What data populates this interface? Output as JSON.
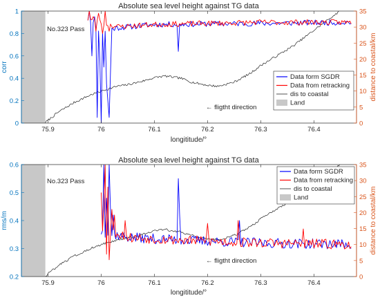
{
  "colors": {
    "sgdr": "#0000FF",
    "retracking": "#FF0000",
    "coastal": "#262626",
    "land": "#C8C8C8",
    "left_axis": "#0072BD",
    "right_axis": "#D95319"
  },
  "chart_data": [
    {
      "type": "line",
      "title": "Absolute sea level height against TG data",
      "xlabel": "longititude/°",
      "ylabel": "corr",
      "y2label": "distance to coastal/km",
      "xlim": [
        75.85,
        76.48
      ],
      "ylim": [
        0,
        1
      ],
      "y2lim": [
        0,
        35
      ],
      "x_ticks": [
        "75.9",
        "76",
        "76.1",
        "76.2",
        "76.3",
        "76.4"
      ],
      "y_ticks": [
        "0",
        "0.2",
        "0.4",
        "0.6",
        "0.8",
        "1"
      ],
      "y2_ticks": [
        "0",
        "5",
        "10",
        "15",
        "20",
        "25",
        "30",
        "35"
      ],
      "land_range": [
        75.85,
        75.895
      ],
      "annotations": [
        "No.323 Pass",
        "← fligtht direction"
      ],
      "legend_position": "lower-right",
      "legend": [
        "Data form SGDR",
        "Data from retracking",
        "dis to coastal",
        "Land"
      ],
      "grid": false,
      "series": [
        {
          "name": "Data form SGDR",
          "axis": "left",
          "color_key": "sgdr",
          "x_start": 75.975,
          "x_end": 76.47,
          "step": 0.0025,
          "seed": 11,
          "baseline": [
            [
              75.975,
              0.93
            ],
            [
              76.0,
              0.82
            ],
            [
              76.03,
              0.85
            ],
            [
              76.1,
              0.88
            ],
            [
              76.3,
              0.89
            ],
            [
              76.47,
              0.9
            ]
          ],
          "noise": 0.025,
          "spikes": [
            [
              75.977,
              1.0
            ],
            [
              75.983,
              0.6
            ],
            [
              75.988,
              0.95
            ],
            [
              75.993,
              0.05
            ],
            [
              75.998,
              0.55
            ],
            [
              76.001,
              0.0
            ],
            [
              76.005,
              0.5
            ],
            [
              76.009,
              0.35
            ],
            [
              76.012,
              0.2
            ],
            [
              76.015,
              0.05
            ],
            [
              76.018,
              0.45
            ],
            [
              76.146,
              0.64
            ]
          ]
        },
        {
          "name": "Data from retracking",
          "axis": "left",
          "color_key": "retracking",
          "x_start": 75.975,
          "x_end": 76.47,
          "step": 0.0025,
          "seed": 23,
          "baseline": [
            [
              75.975,
              0.93
            ],
            [
              76.03,
              0.86
            ],
            [
              76.1,
              0.88
            ],
            [
              76.3,
              0.9
            ],
            [
              76.47,
              0.9
            ]
          ],
          "noise": 0.025,
          "spikes": [
            [
              75.978,
              1.0
            ],
            [
              75.985,
              0.95
            ],
            [
              75.99,
              0.82
            ],
            [
              75.996,
              0.98
            ],
            [
              76.003,
              0.8
            ],
            [
              76.008,
              1.0
            ],
            [
              76.016,
              0.82
            ]
          ]
        },
        {
          "name": "dis to coastal",
          "axis": "right",
          "color_key": "coastal",
          "points": [
            [
              75.895,
              0.2
            ],
            [
              75.92,
              3.5
            ],
            [
              75.95,
              6.5
            ],
            [
              75.98,
              8.8
            ],
            [
              76.0,
              10.0
            ],
            [
              76.03,
              11.5
            ],
            [
              76.05,
              12.0
            ],
            [
              76.08,
              13.2
            ],
            [
              76.1,
              14.2
            ],
            [
              76.12,
              14.7
            ],
            [
              76.15,
              14.0
            ],
            [
              76.17,
              12.8
            ],
            [
              76.2,
              11.8
            ],
            [
              76.22,
              11.5
            ],
            [
              76.25,
              12.8
            ],
            [
              76.28,
              15.5
            ],
            [
              76.3,
              18.0
            ],
            [
              76.33,
              21.0
            ],
            [
              76.36,
              24.0
            ],
            [
              76.38,
              26.5
            ],
            [
              76.4,
              29.0
            ],
            [
              76.42,
              31.5
            ],
            [
              76.44,
              34.0
            ],
            [
              76.45,
              35.0
            ]
          ],
          "jitter": 0.35
        }
      ]
    },
    {
      "type": "line",
      "title": "Absolute sea level height against TG data",
      "xlabel": "longititude/°",
      "ylabel": "rms/m",
      "y2label": "distance to coastal/km",
      "xlim": [
        75.85,
        76.48
      ],
      "ylim": [
        0.2,
        0.6
      ],
      "y2lim": [
        0,
        35
      ],
      "x_ticks": [
        "75.9",
        "76",
        "76.1",
        "76.2",
        "76.3",
        "76.4"
      ],
      "y_ticks": [
        "0.2",
        "0.3",
        "0.4",
        "0.5",
        "0.6"
      ],
      "y2_ticks": [
        "0",
        "5",
        "10",
        "15",
        "20",
        "25",
        "30",
        "35"
      ],
      "land_range": [
        75.85,
        75.895
      ],
      "annotations": [
        "No.323 Pass",
        "← fligtht direction"
      ],
      "legend_position": "top-right",
      "legend": [
        "Data form SGDR",
        "Data from retracking",
        "dis to coastal",
        "Land"
      ],
      "grid": false,
      "series": [
        {
          "name": "Data form SGDR",
          "axis": "left",
          "color_key": "sgdr",
          "x_start": 76.0,
          "x_end": 76.47,
          "step": 0.0025,
          "seed": 37,
          "baseline": [
            [
              76.0,
              0.36
            ],
            [
              76.05,
              0.34
            ],
            [
              76.15,
              0.33
            ],
            [
              76.3,
              0.32
            ],
            [
              76.47,
              0.315
            ]
          ],
          "noise": 0.018,
          "spikes": [
            [
              76.005,
              0.6
            ],
            [
              76.01,
              0.48
            ],
            [
              76.014,
              0.6
            ],
            [
              76.018,
              0.44
            ],
            [
              76.022,
              0.42
            ],
            [
              76.145,
              0.55
            ],
            [
              76.148,
              0.42
            ],
            [
              76.26,
              0.4
            ]
          ]
        },
        {
          "name": "Data from retracking",
          "axis": "left",
          "color_key": "retracking",
          "x_start": 76.0,
          "x_end": 76.47,
          "step": 0.0025,
          "seed": 53,
          "baseline": [
            [
              76.0,
              0.38
            ],
            [
              76.05,
              0.34
            ],
            [
              76.15,
              0.33
            ],
            [
              76.3,
              0.32
            ],
            [
              76.47,
              0.315
            ]
          ],
          "noise": 0.018,
          "spikes": [
            [
              76.001,
              0.5
            ],
            [
              76.004,
              0.45
            ],
            [
              76.008,
              0.6
            ],
            [
              76.011,
              0.28
            ],
            [
              76.013,
              0.52
            ],
            [
              76.016,
              0.26
            ],
            [
              76.02,
              0.44
            ],
            [
              76.024,
              0.42
            ],
            [
              76.046,
              0.4
            ],
            [
              76.2,
              0.39
            ],
            [
              76.258,
              0.4
            ],
            [
              76.38,
              0.37
            ]
          ]
        },
        {
          "name": "dis to coastal",
          "axis": "right",
          "color_key": "coastal",
          "points": [
            [
              75.895,
              0.2
            ],
            [
              75.92,
              3.5
            ],
            [
              75.95,
              6.5
            ],
            [
              75.98,
              8.8
            ],
            [
              76.0,
              10.0
            ],
            [
              76.03,
              11.5
            ],
            [
              76.05,
              12.0
            ],
            [
              76.08,
              13.2
            ],
            [
              76.1,
              14.2
            ],
            [
              76.12,
              14.7
            ],
            [
              76.15,
              14.0
            ],
            [
              76.17,
              12.8
            ],
            [
              76.2,
              11.8
            ],
            [
              76.22,
              11.5
            ],
            [
              76.25,
              12.8
            ],
            [
              76.28,
              15.5
            ],
            [
              76.3,
              18.0
            ],
            [
              76.33,
              21.0
            ],
            [
              76.36,
              24.0
            ],
            [
              76.38,
              26.5
            ],
            [
              76.4,
              29.0
            ],
            [
              76.42,
              31.5
            ],
            [
              76.44,
              34.0
            ],
            [
              76.45,
              35.0
            ]
          ],
          "jitter": 0.35
        }
      ]
    }
  ]
}
